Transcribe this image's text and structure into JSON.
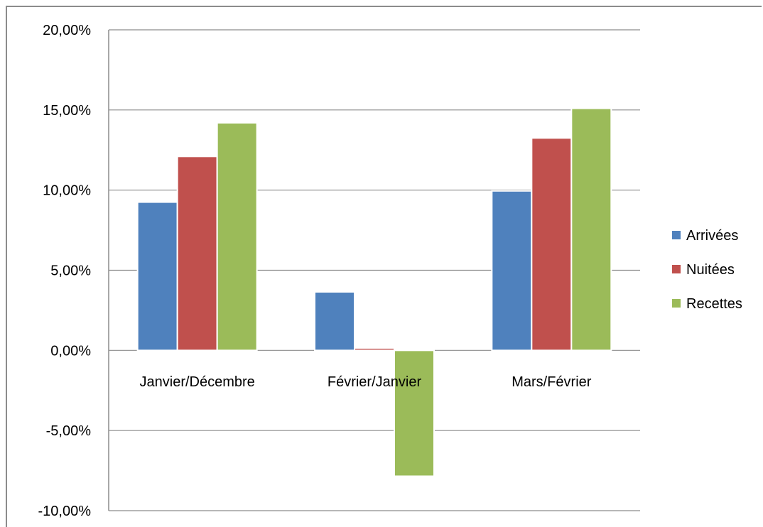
{
  "chart_data": {
    "type": "bar",
    "categories": [
      "Janvier/Décembre",
      "Février/Janvier",
      "Mars/Février"
    ],
    "series": [
      {
        "name": "Arrivées",
        "values": [
          9.25,
          3.65,
          9.95
        ],
        "color": "#4f81bd"
      },
      {
        "name": "Nuitées",
        "values": [
          12.1,
          0.15,
          13.25
        ],
        "color": "#c0504d"
      },
      {
        "name": "Recettes",
        "values": [
          14.2,
          -7.85,
          15.1
        ],
        "color": "#9bbb59"
      }
    ],
    "y_ticks": [
      "20,00%",
      "15,00%",
      "10,00%",
      "5,00%",
      "0,00%",
      "-5,00%",
      "-10,00%"
    ],
    "ylim": [
      -10,
      20
    ],
    "y_step": 5,
    "grid": true,
    "legend_position": "right",
    "title": "",
    "xlabel": "",
    "ylabel": ""
  }
}
